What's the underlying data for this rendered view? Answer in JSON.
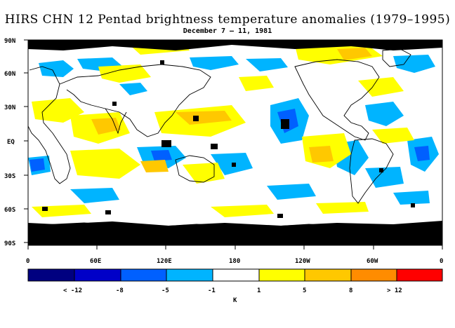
{
  "title": "HIRS CHN 12 Pentad brightness temperature anomalies (1979–1995)",
  "subtitle": "December 7 – 11, 1981",
  "lat_labels": [
    "90N",
    "60N",
    "30N",
    "EQ",
    "30S",
    "60S",
    "90S"
  ],
  "lon_labels": [
    "0",
    "60E",
    "120E",
    "180",
    "120W",
    "60W",
    "0"
  ],
  "colorbar": {
    "colors": [
      "#000080",
      "#0000c8",
      "#0060ff",
      "#00b4ff",
      "#ffffff",
      "#ffff00",
      "#ffc800",
      "#ff8c00",
      "#ff0000"
    ],
    "labels": [
      "< -12",
      "-8",
      "-5",
      "-1",
      "1",
      "5",
      "8",
      "> 12"
    ],
    "unit": "K"
  },
  "colors": {
    "missing": "#000000",
    "land_outline": "#000000",
    "ocean_background": "#ffffff"
  }
}
